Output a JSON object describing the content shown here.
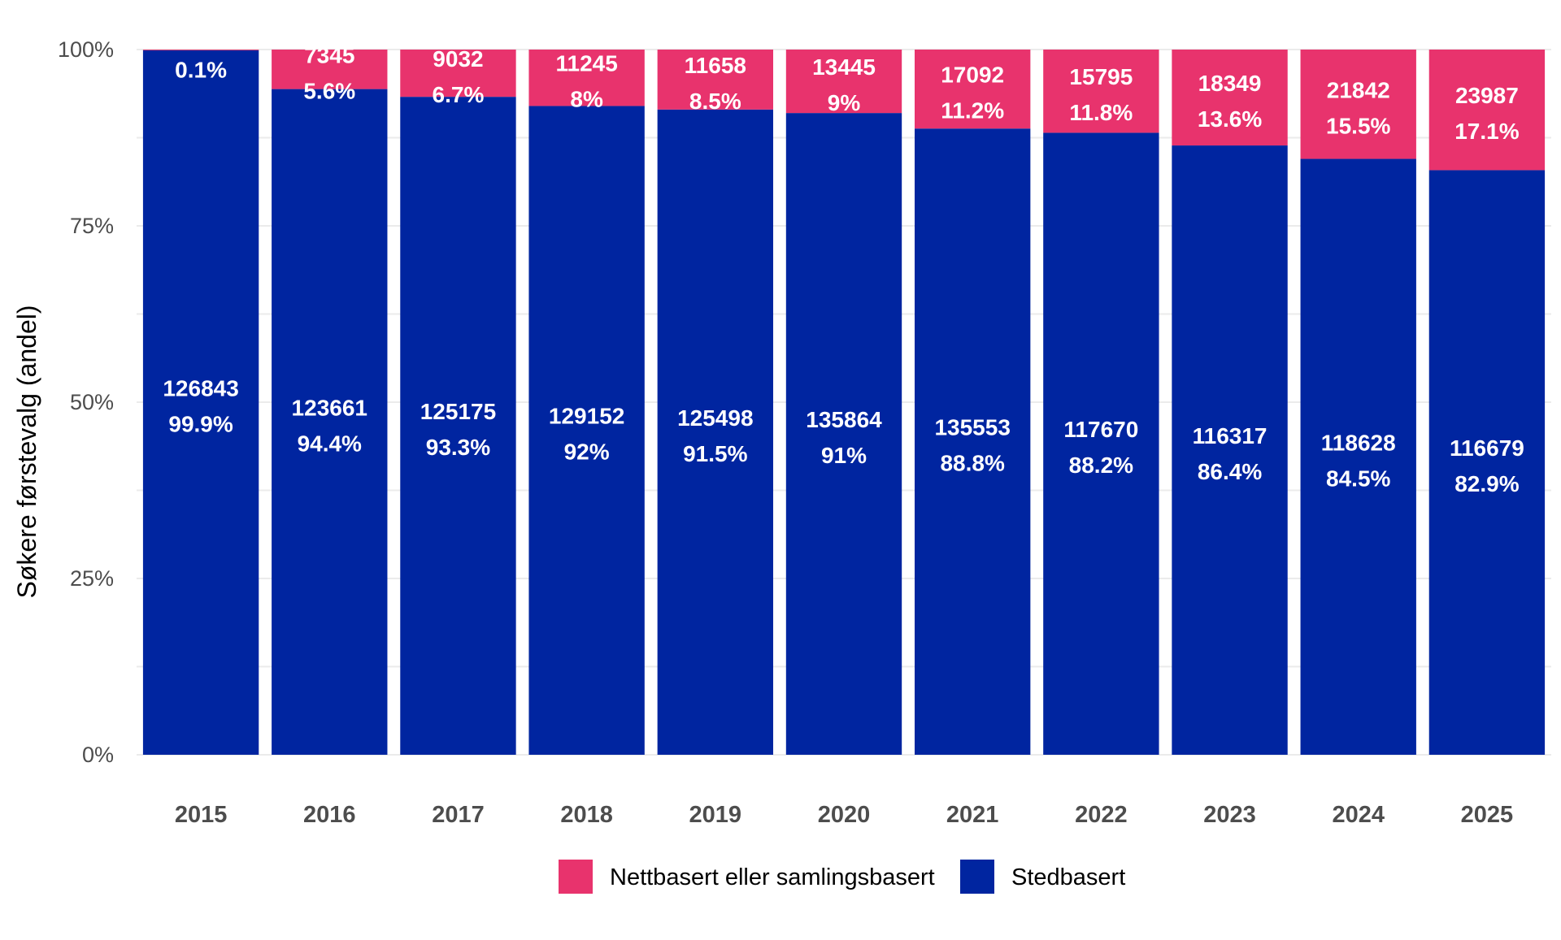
{
  "chart_data": {
    "type": "bar",
    "stacked": true,
    "normalized": true,
    "title": "",
    "xlabel": "",
    "ylabel": "Søkere førstevalg (andel)",
    "ylim": [
      0,
      1
    ],
    "yticks": [
      {
        "value": 0,
        "label": "0%"
      },
      {
        "value": 0.25,
        "label": "25%"
      },
      {
        "value": 0.5,
        "label": "50%"
      },
      {
        "value": 0.75,
        "label": "75%"
      },
      {
        "value": 1,
        "label": "100%"
      }
    ],
    "grid": true,
    "legend_position": "bottom",
    "categories": [
      "2015",
      "2016",
      "2017",
      "2018",
      "2019",
      "2020",
      "2021",
      "2022",
      "2023",
      "2024",
      "2025"
    ],
    "series": [
      {
        "name": "Stedbasert",
        "color": "#0025A0",
        "counts": [
          "126843",
          "123661",
          "125175",
          "129152",
          "125498",
          "135864",
          "135553",
          "117670",
          "116317",
          "118628",
          "116679"
        ],
        "percent_labels": [
          "99.9%",
          "94.4%",
          "93.3%",
          "92%",
          "91.5%",
          "91%",
          "88.8%",
          "88.2%",
          "86.4%",
          "84.5%",
          "82.9%"
        ],
        "values": [
          0.999,
          0.944,
          0.933,
          0.92,
          0.915,
          0.91,
          0.888,
          0.882,
          0.864,
          0.845,
          0.829
        ]
      },
      {
        "name": "Nettbasert eller samlingsbasert",
        "color": "#E8336D",
        "counts": [
          "",
          "7345",
          "9032",
          "11245",
          "11658",
          "13445",
          "17092",
          "15795",
          "18349",
          "21842",
          "23987"
        ],
        "percent_labels": [
          "0.1%",
          "5.6%",
          "6.7%",
          "8%",
          "8.5%",
          "9%",
          "11.2%",
          "11.8%",
          "13.6%",
          "15.5%",
          "17.1%"
        ],
        "values": [
          0.001,
          0.056,
          0.067,
          0.08,
          0.085,
          0.09,
          0.112,
          0.118,
          0.136,
          0.155,
          0.171
        ]
      }
    ],
    "legend": [
      {
        "label": "Nettbasert eller samlingsbasert",
        "color": "#E8336D"
      },
      {
        "label": "Stedbasert",
        "color": "#0025A0"
      }
    ]
  }
}
